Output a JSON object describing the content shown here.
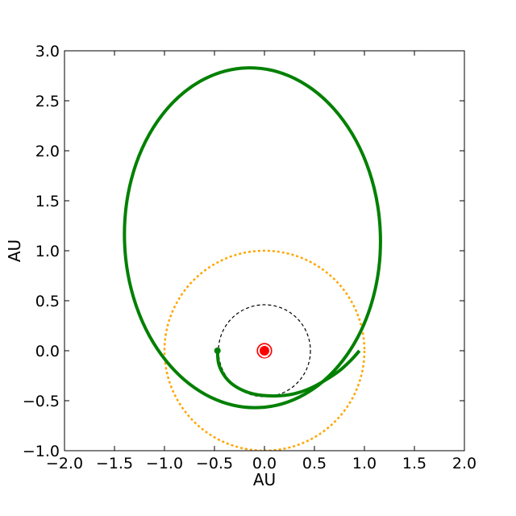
{
  "chart_data": {
    "type": "line",
    "title": "",
    "xlabel": "AU",
    "ylabel": "AU",
    "xlim": [
      -2.0,
      2.0
    ],
    "ylim": [
      -1.0,
      3.0
    ],
    "xticks": [
      -2.0,
      -1.5,
      -1.0,
      -0.5,
      0.0,
      0.5,
      1.0,
      1.5,
      2.0
    ],
    "yticks": [
      -1.0,
      -0.5,
      0.0,
      0.5,
      1.0,
      1.5,
      2.0,
      2.5,
      3.0
    ],
    "xtick_labels": [
      "−2.0",
      "−1.5",
      "−1.0",
      "−0.5",
      "0.0",
      "0.5",
      "1.0",
      "1.5",
      "2.0"
    ],
    "ytick_labels": [
      "−1.0",
      "−0.5",
      "0.0",
      "0.5",
      "1.0",
      "1.5",
      "2.0",
      "2.5",
      "3.0"
    ],
    "grid": false,
    "legend": false,
    "series": [
      {
        "kind": "circle",
        "style": "dashed",
        "color": "#ffa500",
        "center": [
          0.0,
          0.0
        ],
        "radius": 1.0
      },
      {
        "kind": "circle",
        "style": "dashed",
        "color": "#000000",
        "center": [
          0.0,
          0.0
        ],
        "radius": 0.46
      },
      {
        "kind": "arc",
        "style": "solid",
        "color": "#ff0000",
        "center": [
          0.0,
          0.0
        ],
        "radius": 0.07,
        "start_deg": -60,
        "end_deg": 250
      },
      {
        "kind": "ellipse",
        "style": "solid",
        "color": "#008000",
        "center": [
          -0.12,
          1.13
        ],
        "rx": 1.28,
        "ry": 1.7,
        "rotation_deg": 2
      },
      {
        "kind": "path",
        "style": "solid",
        "color": "#008000",
        "points": [
          [
            -0.47,
            0.0
          ],
          [
            -0.46,
            -0.12
          ],
          [
            -0.42,
            -0.22
          ],
          [
            -0.35,
            -0.31
          ],
          [
            -0.25,
            -0.38
          ],
          [
            -0.12,
            -0.43
          ],
          [
            0.02,
            -0.45
          ],
          [
            0.16,
            -0.45
          ],
          [
            0.3,
            -0.43
          ],
          [
            0.45,
            -0.38
          ],
          [
            0.6,
            -0.3
          ],
          [
            0.75,
            -0.2
          ],
          [
            0.87,
            -0.09
          ],
          [
            0.95,
            0.0
          ]
        ]
      },
      {
        "kind": "point",
        "color": "#008000",
        "x": -0.47,
        "y": 0.0
      },
      {
        "kind": "point",
        "color": "#ff0000",
        "x": 0.0,
        "y": 0.0
      }
    ]
  }
}
